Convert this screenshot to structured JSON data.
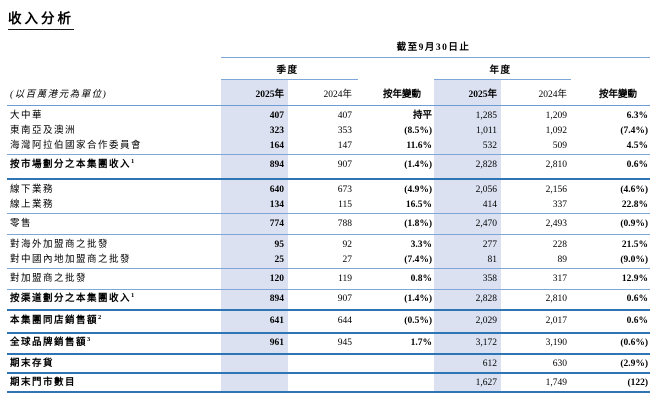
{
  "title": "收入分析",
  "table": {
    "period_header": "截至9月30日止",
    "unit_label": "(以百萬港元為單位)",
    "sections": {
      "quarter": "季度",
      "year": "年度"
    },
    "col_headers": {
      "y2025": "2025年",
      "y2024": "2024年",
      "yoy": "按年變動"
    },
    "rows": [
      {
        "label": "大中華",
        "sup": "",
        "bold": false,
        "rule": "none",
        "cells": [
          "407",
          "407",
          "持平",
          "1,285",
          "1,209",
          "6.3%"
        ]
      },
      {
        "label": "東南亞及澳洲",
        "sup": "",
        "bold": false,
        "rule": "none",
        "cells": [
          "323",
          "353",
          "(8.5%)",
          "1,011",
          "1,092",
          "(7.4%)"
        ]
      },
      {
        "label": "海灣阿拉伯國家合作委員會",
        "sup": "",
        "bold": false,
        "rule": "thin",
        "cells": [
          "164",
          "147",
          "11.6%",
          "532",
          "509",
          "4.5%"
        ]
      },
      {
        "label": "按市場劃分之本集團收入",
        "sup": "1",
        "bold": true,
        "rule": "thick",
        "cells": [
          "894",
          "907",
          "(1.4%)",
          "2,828",
          "2,810",
          "0.6%"
        ]
      },
      {
        "label": "線下業務",
        "sup": "",
        "bold": false,
        "rule": "none",
        "cells": [
          "640",
          "673",
          "(4.9%)",
          "2,056",
          "2,156",
          "(4.6%)"
        ]
      },
      {
        "label": "線上業務",
        "sup": "",
        "bold": false,
        "rule": "thin",
        "cells": [
          "134",
          "115",
          "16.5%",
          "414",
          "337",
          "22.8%"
        ]
      },
      {
        "label": "零售",
        "sup": "",
        "bold": false,
        "rule": "thin",
        "cells": [
          "774",
          "788",
          "(1.8%)",
          "2,470",
          "2,493",
          "(0.9%)"
        ]
      },
      {
        "label": "對海外加盟商之批發",
        "sup": "",
        "bold": false,
        "rule": "none",
        "cells": [
          "95",
          "92",
          "3.3%",
          "277",
          "228",
          "21.5%"
        ]
      },
      {
        "label": "對中國內地加盟商之批發",
        "sup": "",
        "bold": false,
        "rule": "thin",
        "cells": [
          "25",
          "27",
          "(7.4%)",
          "81",
          "89",
          "(9.0%)"
        ]
      },
      {
        "label": "對加盟商之批發",
        "sup": "",
        "bold": false,
        "rule": "thin",
        "cells": [
          "120",
          "119",
          "0.8%",
          "358",
          "317",
          "12.9%"
        ]
      },
      {
        "label": "按渠道劃分之本集團收入",
        "sup": "1",
        "bold": true,
        "rule": "thick",
        "cells": [
          "894",
          "907",
          "(1.4%)",
          "2,828",
          "2,810",
          "0.6%"
        ]
      },
      {
        "label": "本集團同店銷售額",
        "sup": "2",
        "bold": true,
        "rule": "thick",
        "cells": [
          "641",
          "644",
          "(0.5%)",
          "2,029",
          "2,017",
          "0.6%"
        ]
      },
      {
        "label": "全球品牌銷售額",
        "sup": "3",
        "bold": true,
        "rule": "thick",
        "cells": [
          "961",
          "945",
          "1.7%",
          "3,172",
          "3,190",
          "(0.6%)"
        ]
      },
      {
        "label": "期末存貨",
        "sup": "",
        "bold": true,
        "rule": "thick",
        "cells": [
          "",
          "",
          "",
          "612",
          "630",
          "(2.9%)"
        ]
      },
      {
        "label": "期末門市數目",
        "sup": "",
        "bold": true,
        "rule": "thick",
        "cells": [
          "1,627",
          "1,749",
          "(122)"
        ],
        "year_only": true
      }
    ]
  },
  "colors": {
    "highlight_column": "#dbe1f1",
    "rule_thin": "#7ea6d8",
    "rule_thick": "#2e75b6",
    "text": "#000000"
  }
}
